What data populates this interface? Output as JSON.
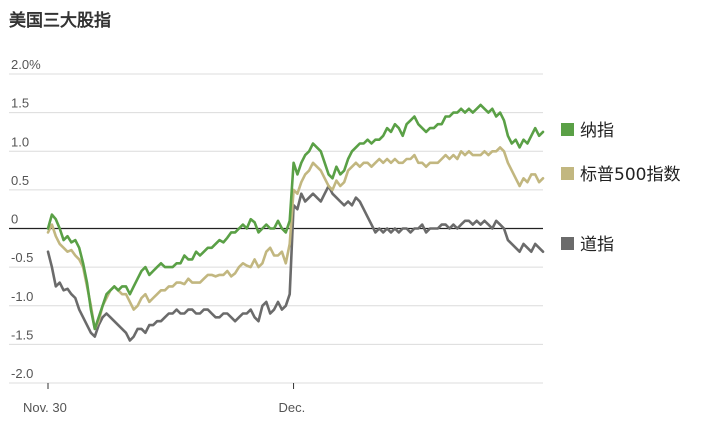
{
  "chart_data": {
    "type": "line",
    "title": "美国三大股指",
    "xlabel": "",
    "ylabel": "",
    "ylim": [
      -2.0,
      2.0
    ],
    "y_ticks": [
      "2.0%",
      "1.5",
      "1.0",
      "0.5",
      "0",
      "-0.5",
      "-1.0",
      "-1.5",
      "-2.0"
    ],
    "y_tick_values": [
      2.0,
      1.5,
      1.0,
      0.5,
      0,
      -0.5,
      -1.0,
      -1.5,
      -2.0
    ],
    "x_ticks": [
      "Nov. 30",
      "Dec."
    ],
    "grid": "horizontal",
    "legend_placement": "right",
    "series": [
      {
        "name": "纳指",
        "color": "#5aa046",
        "values": [
          0.0,
          0.18,
          0.12,
          0.0,
          -0.15,
          -0.1,
          -0.18,
          -0.15,
          -0.25,
          -0.45,
          -0.7,
          -1.05,
          -1.3,
          -1.15,
          -1.0,
          -0.85,
          -0.8,
          -0.75,
          -0.8,
          -0.75,
          -0.75,
          -0.85,
          -0.75,
          -0.65,
          -0.55,
          -0.5,
          -0.6,
          -0.55,
          -0.5,
          -0.45,
          -0.5,
          -0.5,
          -0.5,
          -0.45,
          -0.45,
          -0.35,
          -0.4,
          -0.4,
          -0.3,
          -0.35,
          -0.3,
          -0.25,
          -0.25,
          -0.2,
          -0.15,
          -0.18,
          -0.12,
          -0.05,
          -0.05,
          0.0,
          0.05,
          0.0,
          0.12,
          0.08,
          -0.05,
          0.0,
          0.05,
          0.0,
          0.0,
          0.1,
          0.0,
          -0.05,
          0.1,
          0.85,
          0.7,
          0.85,
          0.95,
          1.0,
          1.1,
          1.05,
          1.0,
          0.85,
          0.7,
          0.65,
          0.8,
          0.7,
          0.75,
          0.9,
          1.0,
          1.05,
          1.1,
          1.1,
          1.15,
          1.1,
          1.15,
          1.15,
          1.2,
          1.3,
          1.25,
          1.35,
          1.3,
          1.2,
          1.35,
          1.4,
          1.45,
          1.35,
          1.3,
          1.25,
          1.3,
          1.3,
          1.35,
          1.35,
          1.45,
          1.45,
          1.5,
          1.5,
          1.55,
          1.5,
          1.55,
          1.5,
          1.55,
          1.6,
          1.55,
          1.5,
          1.55,
          1.45,
          1.5,
          1.4,
          1.2,
          1.1,
          1.15,
          1.05,
          1.15,
          1.1,
          1.2,
          1.3,
          1.2,
          1.25
        ]
      },
      {
        "name": "标普500指数",
        "color": "#c2b780",
        "values": [
          -0.05,
          0.05,
          -0.1,
          -0.2,
          -0.25,
          -0.3,
          -0.28,
          -0.35,
          -0.4,
          -0.5,
          -0.75,
          -1.0,
          -1.3,
          -1.2,
          -1.0,
          -0.9,
          -0.8,
          -0.75,
          -0.8,
          -0.85,
          -0.85,
          -0.95,
          -1.05,
          -1.0,
          -0.9,
          -0.85,
          -0.95,
          -0.9,
          -0.85,
          -0.8,
          -0.8,
          -0.75,
          -0.75,
          -0.7,
          -0.7,
          -0.72,
          -0.65,
          -0.7,
          -0.7,
          -0.7,
          -0.65,
          -0.6,
          -0.6,
          -0.62,
          -0.6,
          -0.6,
          -0.55,
          -0.62,
          -0.58,
          -0.5,
          -0.45,
          -0.48,
          -0.5,
          -0.4,
          -0.5,
          -0.45,
          -0.3,
          -0.25,
          -0.35,
          -0.35,
          -0.3,
          -0.45,
          -0.2,
          0.5,
          0.45,
          0.6,
          0.7,
          0.75,
          0.85,
          0.8,
          0.75,
          0.65,
          0.55,
          0.5,
          0.62,
          0.55,
          0.6,
          0.75,
          0.8,
          0.85,
          0.8,
          0.85,
          0.85,
          0.8,
          0.85,
          0.9,
          0.85,
          0.9,
          0.85,
          0.9,
          0.85,
          0.85,
          0.9,
          0.9,
          0.95,
          0.85,
          0.85,
          0.8,
          0.85,
          0.85,
          0.85,
          0.9,
          0.95,
          0.9,
          0.95,
          0.9,
          1.0,
          0.95,
          1.0,
          0.95,
          0.95,
          0.95,
          1.0,
          0.95,
          1.0,
          1.0,
          1.05,
          1.0,
          0.85,
          0.75,
          0.65,
          0.55,
          0.65,
          0.6,
          0.7,
          0.7,
          0.6,
          0.65
        ]
      },
      {
        "name": "道指",
        "color": "#6b6b6b",
        "values": [
          -0.3,
          -0.5,
          -0.75,
          -0.7,
          -0.8,
          -0.78,
          -0.85,
          -0.9,
          -1.05,
          -1.15,
          -1.25,
          -1.35,
          -1.4,
          -1.25,
          -1.15,
          -1.1,
          -1.15,
          -1.2,
          -1.25,
          -1.3,
          -1.35,
          -1.45,
          -1.4,
          -1.3,
          -1.3,
          -1.35,
          -1.25,
          -1.25,
          -1.2,
          -1.2,
          -1.15,
          -1.1,
          -1.1,
          -1.05,
          -1.1,
          -1.1,
          -1.05,
          -1.05,
          -1.1,
          -1.1,
          -1.05,
          -1.05,
          -1.1,
          -1.15,
          -1.15,
          -1.1,
          -1.1,
          -1.15,
          -1.2,
          -1.15,
          -1.1,
          -1.1,
          -1.05,
          -1.15,
          -1.2,
          -1.0,
          -0.95,
          -1.1,
          -1.05,
          -0.95,
          -1.05,
          -1.0,
          -0.85,
          0.3,
          0.25,
          0.45,
          0.35,
          0.4,
          0.45,
          0.4,
          0.35,
          0.45,
          0.55,
          0.45,
          0.4,
          0.35,
          0.3,
          0.35,
          0.3,
          0.4,
          0.35,
          0.25,
          0.15,
          0.05,
          -0.05,
          0.0,
          -0.05,
          0.0,
          -0.05,
          0.0,
          -0.05,
          0.0,
          0.0,
          -0.05,
          0.0,
          0.0,
          0.05,
          -0.05,
          0.0,
          0.0,
          0.0,
          0.05,
          0.05,
          0.0,
          0.05,
          0.0,
          0.05,
          0.1,
          0.1,
          0.05,
          0.1,
          0.05,
          0.1,
          0.05,
          0.0,
          0.1,
          0.05,
          0.0,
          -0.15,
          -0.2,
          -0.25,
          -0.3,
          -0.2,
          -0.25,
          -0.3,
          -0.2,
          -0.25,
          -0.3
        ]
      }
    ],
    "dec_break_index": 62
  }
}
